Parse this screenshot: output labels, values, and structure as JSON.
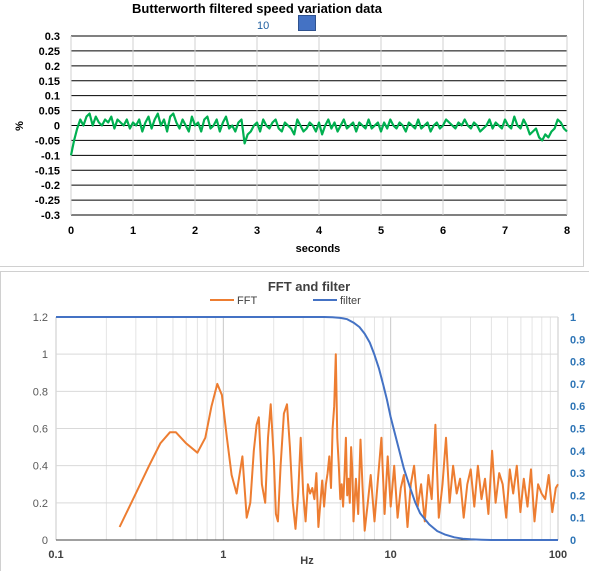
{
  "chart_data": [
    {
      "type": "line",
      "title": "Butterworth filtered speed variation data",
      "xlabel": "seconds",
      "ylabel": "%",
      "xlim": [
        0,
        8
      ],
      "ylim": [
        -0.3,
        0.3
      ],
      "x_ticks": [
        "0",
        "1",
        "2",
        "3",
        "4",
        "5",
        "6",
        "7",
        "8"
      ],
      "y_ticks": [
        "0.3",
        "0.25",
        "0.2",
        "0.15",
        "0.1",
        "0.05",
        "0",
        "-0.05",
        "-0.1",
        "-0.15",
        "-0.2",
        "-0.25",
        "-0.3"
      ],
      "grid": true,
      "series": [
        {
          "color": "#00b050",
          "x": [
            0,
            0.05,
            0.1,
            0.15,
            0.2,
            0.25,
            0.3,
            0.35,
            0.4,
            0.45,
            0.5,
            0.55,
            0.6,
            0.65,
            0.7,
            0.75,
            0.8,
            0.85,
            0.9,
            0.95,
            1.0,
            1.05,
            1.1,
            1.15,
            1.2,
            1.25,
            1.3,
            1.35,
            1.4,
            1.45,
            1.5,
            1.55,
            1.6,
            1.65,
            1.7,
            1.75,
            1.8,
            1.85,
            1.9,
            1.95,
            2.0,
            2.05,
            2.1,
            2.15,
            2.2,
            2.25,
            2.3,
            2.35,
            2.4,
            2.45,
            2.5,
            2.55,
            2.6,
            2.65,
            2.7,
            2.75,
            2.8,
            2.85,
            2.9,
            2.95,
            3.0,
            3.05,
            3.1,
            3.15,
            3.2,
            3.25,
            3.3,
            3.35,
            3.4,
            3.45,
            3.5,
            3.55,
            3.6,
            3.65,
            3.7,
            3.75,
            3.8,
            3.85,
            3.9,
            3.95,
            4.0,
            4.05,
            4.1,
            4.15,
            4.2,
            4.25,
            4.3,
            4.35,
            4.4,
            4.45,
            4.5,
            4.55,
            4.6,
            4.65,
            4.7,
            4.75,
            4.8,
            4.85,
            4.9,
            4.95,
            5.0,
            5.05,
            5.1,
            5.15,
            5.2,
            5.25,
            5.3,
            5.35,
            5.4,
            5.45,
            5.5,
            5.55,
            5.6,
            5.65,
            5.7,
            5.75,
            5.8,
            5.85,
            5.9,
            5.95,
            6.0,
            6.05,
            6.1,
            6.15,
            6.2,
            6.25,
            6.3,
            6.35,
            6.4,
            6.45,
            6.5,
            6.55,
            6.6,
            6.65,
            6.7,
            6.75,
            6.8,
            6.85,
            6.9,
            6.95,
            7.0,
            7.05,
            7.1,
            7.15,
            7.2,
            7.25,
            7.3,
            7.35,
            7.4,
            7.45,
            7.5,
            7.55,
            7.6,
            7.65,
            7.7,
            7.75,
            7.8,
            7.85,
            7.9,
            7.95,
            8.0
          ],
          "y": [
            -0.1,
            -0.05,
            -0.01,
            0.02,
            0.0,
            0.03,
            0.04,
            0.0,
            0.03,
            0.01,
            0.0,
            0.02,
            0.01,
            0.03,
            -0.01,
            0.02,
            0.01,
            0.0,
            0.02,
            -0.01,
            0.01,
            0.0,
            0.02,
            -0.02,
            0.01,
            0.03,
            -0.01,
            0.02,
            0.04,
            0.0,
            0.02,
            -0.02,
            0.03,
            0.04,
            0.01,
            -0.01,
            0.02,
            0.0,
            -0.02,
            0.03,
            0.0,
            0.01,
            -0.02,
            0.02,
            0.03,
            -0.01,
            0.0,
            0.02,
            -0.02,
            0.01,
            0.03,
            -0.01,
            0.0,
            -0.02,
            0.01,
            0.02,
            -0.06,
            -0.03,
            -0.02,
            0.0,
            0.01,
            -0.02,
            0.02,
            0.0,
            -0.01,
            0.01,
            0.02,
            -0.01,
            -0.02,
            0.01,
            0.0,
            -0.01,
            -0.03,
            0.02,
            0.0,
            -0.02,
            -0.01,
            0.01,
            0.0,
            -0.02,
            0.01,
            -0.03,
            0.0,
            0.02,
            -0.01,
            0.01,
            -0.02,
            0.0,
            0.02,
            -0.01,
            0.0,
            0.01,
            -0.02,
            0.01,
            0.0,
            -0.01,
            0.02,
            -0.01,
            0.0,
            0.01,
            -0.02,
            0.01,
            -0.01,
            0.02,
            0.0,
            -0.01,
            0.01,
            0.0,
            -0.02,
            0.01,
            0.0,
            -0.01,
            0.02,
            -0.01,
            0.0,
            0.01,
            -0.02,
            0.0,
            0.01,
            -0.01,
            0.0,
            0.02,
            0.01,
            0.0,
            -0.01,
            0.01,
            0.0,
            0.02,
            0.0,
            -0.01,
            0.01,
            0.0,
            -0.02,
            -0.01,
            0.0,
            0.02,
            -0.01,
            0.01,
            0.0,
            -0.01,
            0.02,
            0.0,
            -0.01,
            0.03,
            0.0,
            -0.01,
            0.02,
            0.0,
            -0.03,
            -0.02,
            -0.01,
            -0.04,
            -0.05,
            -0.03,
            -0.04,
            -0.02,
            -0.01,
            0.02,
            0.01,
            -0.01,
            -0.02
          ]
        }
      ]
    },
    {
      "type": "line",
      "title": "FFT and filter",
      "xlabel": "Hz",
      "x_scale": "log",
      "xlim": [
        0.1,
        100
      ],
      "ylim": [
        0,
        1.2
      ],
      "y2lim": [
        0,
        1
      ],
      "x_ticks": [
        "0.1",
        "1",
        "10",
        "100"
      ],
      "y_ticks": [
        "1.2",
        "1",
        "0.8",
        "0.6",
        "0.4",
        "0.2",
        "0"
      ],
      "y2_ticks": [
        "1",
        "0.9",
        "0.8",
        "0.7",
        "0.6",
        "0.5",
        "0.4",
        "0.3",
        "0.2",
        "0.1",
        "0"
      ],
      "legend_position": "top",
      "grid": true,
      "series": [
        {
          "name": "FFT",
          "color": "#ed7d31",
          "axis": "left",
          "x": [
            0.24,
            0.3,
            0.36,
            0.42,
            0.48,
            0.52,
            0.6,
            0.7,
            0.78,
            0.85,
            0.92,
            0.98,
            1.05,
            1.12,
            1.2,
            1.3,
            1.38,
            1.45,
            1.52,
            1.58,
            1.63,
            1.7,
            1.78,
            1.85,
            1.92,
            2.0,
            2.06,
            2.12,
            2.2,
            2.3,
            2.4,
            2.5,
            2.6,
            2.7,
            2.8,
            2.9,
            3.0,
            3.1,
            3.2,
            3.3,
            3.4,
            3.5,
            3.6,
            3.7,
            3.8,
            3.9,
            4.0,
            4.1,
            4.2,
            4.3,
            4.4,
            4.5,
            4.6,
            4.7,
            4.8,
            4.9,
            5.0,
            5.1,
            5.2,
            5.3,
            5.4,
            5.5,
            5.6,
            5.7,
            5.8,
            5.9,
            6.0,
            6.2,
            6.4,
            6.6,
            6.8,
            7.0,
            7.3,
            7.6,
            8.0,
            8.4,
            8.8,
            9.2,
            9.6,
            10,
            10.5,
            11,
            11.5,
            12,
            12.6,
            13.2,
            13.8,
            14.5,
            15.2,
            16,
            16.8,
            17.6,
            18.5,
            19.4,
            20.4,
            21.4,
            22.5,
            23.6,
            24.8,
            26,
            27.3,
            28.7,
            30.1,
            31.6,
            33.2,
            34.9,
            36.6,
            38.4,
            40.4,
            42.4,
            44.5,
            46.7,
            49,
            51.5,
            54,
            56.7,
            59.6,
            62.5,
            65.7,
            69,
            72.4,
            76,
            79.8,
            83.8,
            88,
            92.4,
            97,
            100
          ],
          "y": [
            0.07,
            0.25,
            0.4,
            0.52,
            0.58,
            0.58,
            0.52,
            0.47,
            0.55,
            0.72,
            0.84,
            0.78,
            0.55,
            0.35,
            0.25,
            0.45,
            0.12,
            0.2,
            0.48,
            0.62,
            0.66,
            0.3,
            0.2,
            0.55,
            0.73,
            0.45,
            0.14,
            0.1,
            0.4,
            0.68,
            0.73,
            0.5,
            0.2,
            0.06,
            0.25,
            0.55,
            0.25,
            0.1,
            0.3,
            0.25,
            0.28,
            0.22,
            0.36,
            0.07,
            0.2,
            0.32,
            0.18,
            0.3,
            0.36,
            0.45,
            0.28,
            0.6,
            0.72,
            1.0,
            0.55,
            0.4,
            0.22,
            0.3,
            0.18,
            0.35,
            0.55,
            0.24,
            0.33,
            0.2,
            0.5,
            0.38,
            0.1,
            0.33,
            0.14,
            0.54,
            0.28,
            0.05,
            0.2,
            0.35,
            0.1,
            0.33,
            0.55,
            0.14,
            0.45,
            0.18,
            0.4,
            0.12,
            0.28,
            0.35,
            0.07,
            0.3,
            0.4,
            0.18,
            0.3,
            0.1,
            0.35,
            0.22,
            0.62,
            0.12,
            0.3,
            0.55,
            0.2,
            0.4,
            0.25,
            0.33,
            0.12,
            0.3,
            0.38,
            0.18,
            0.4,
            0.22,
            0.33,
            0.14,
            0.48,
            0.2,
            0.36,
            0.3,
            0.12,
            0.38,
            0.25,
            0.4,
            0.15,
            0.33,
            0.18,
            0.38,
            0.1,
            0.3,
            0.25,
            0.22,
            0.35,
            0.15,
            0.28,
            0.3
          ]
        },
        {
          "name": "filter",
          "color": "#4472c4",
          "axis": "right",
          "x": [
            0.1,
            0.2,
            0.5,
            1,
            2,
            3,
            4,
            4.5,
            5,
            5.5,
            6,
            6.5,
            7,
            7.5,
            8,
            8.5,
            9,
            9.5,
            10,
            11,
            12,
            13,
            14,
            15,
            17,
            19,
            21,
            24,
            27,
            30,
            35,
            40,
            50,
            70,
            100
          ],
          "y": [
            1,
            1,
            1,
            1,
            1,
            1,
            1,
            0.999,
            0.996,
            0.99,
            0.975,
            0.955,
            0.925,
            0.885,
            0.83,
            0.77,
            0.7,
            0.63,
            0.55,
            0.43,
            0.32,
            0.24,
            0.17,
            0.12,
            0.07,
            0.04,
            0.025,
            0.012,
            0.006,
            0.003,
            0.0015,
            0,
            0,
            0,
            0
          ]
        }
      ]
    }
  ],
  "slider": {
    "value_label": "10"
  }
}
